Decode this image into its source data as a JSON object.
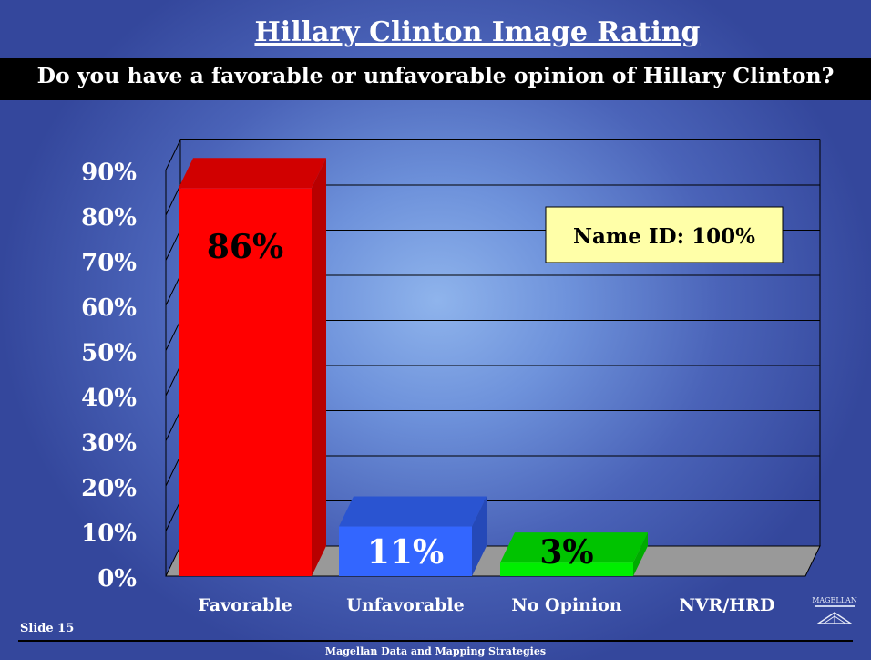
{
  "slide": {
    "title": "Hillary Clinton Image Rating",
    "question": "Do you have a favorable or unfavorable opinion of Hillary Clinton?",
    "slide_number": "Slide 15",
    "footer": "Magellan Data and Mapping Strategies",
    "logo_text": "MAGELLAN"
  },
  "callout": {
    "text": "Name ID: 100%"
  },
  "chart_data": {
    "type": "bar",
    "categories": [
      "Favorable",
      "Unfavorable",
      "No Opinion",
      "NVR/HRD"
    ],
    "values": [
      86,
      11,
      3,
      0
    ],
    "data_labels": [
      "86%",
      "11%",
      "3%",
      ""
    ],
    "yticks": [
      "0%",
      "10%",
      "20%",
      "30%",
      "40%",
      "50%",
      "60%",
      "70%",
      "80%",
      "90%"
    ],
    "ylim": [
      0,
      90
    ],
    "grid": true,
    "legend": "none",
    "colors": [
      "#ff0000",
      "#3366ff",
      "#00ee00",
      "#999999"
    ],
    "label_colors": [
      "#000000",
      "#ffffff",
      "#000000",
      "#000000"
    ]
  }
}
